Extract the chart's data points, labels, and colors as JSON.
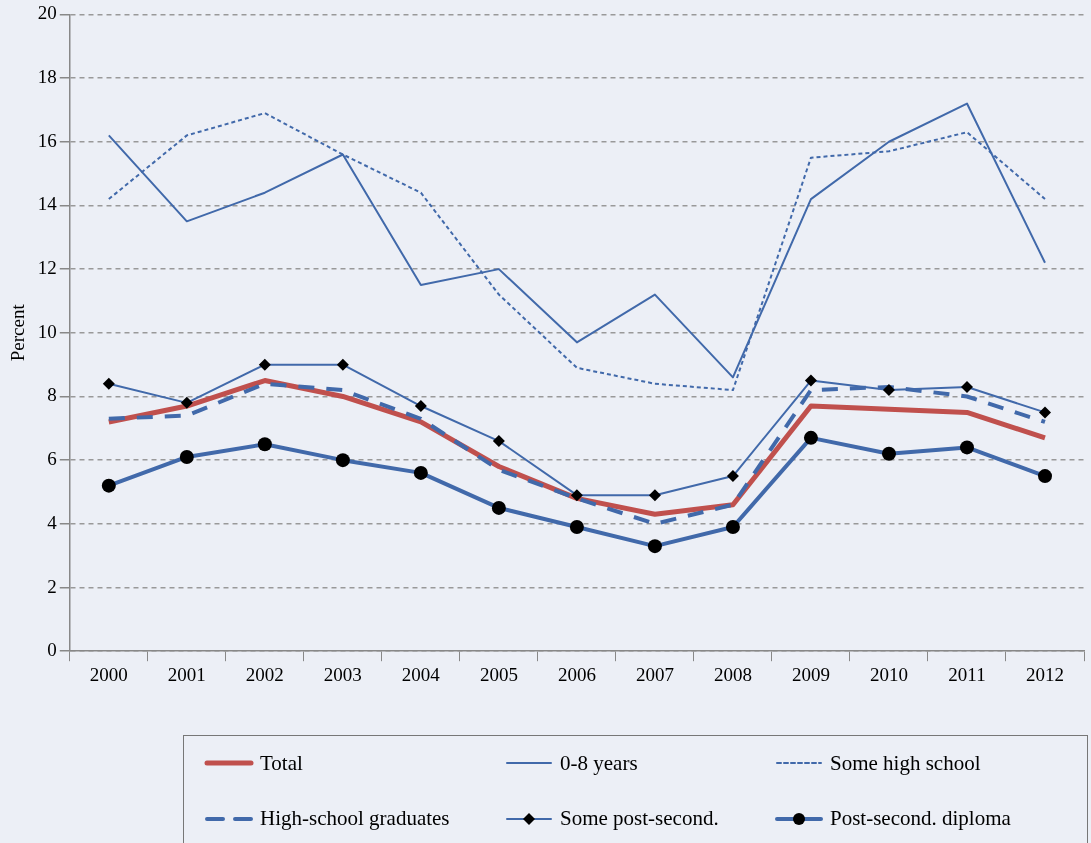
{
  "chart_data": {
    "type": "line",
    "ylabel": "Percent",
    "categories": [
      "2000",
      "2001",
      "2002",
      "2003",
      "2004",
      "2005",
      "2006",
      "2007",
      "2008",
      "2009",
      "2010",
      "2011",
      "2012"
    ],
    "ylim": [
      0,
      20
    ],
    "yticks": [
      0,
      2,
      4,
      6,
      8,
      10,
      12,
      14,
      16,
      18,
      20
    ],
    "grid": "y",
    "legend": "bottom",
    "marker": "none",
    "line_style": "solid",
    "series": [
      {
        "name": "Total",
        "color": "#c0504d",
        "values": [
          7.2,
          7.7,
          8.5,
          8.0,
          7.2,
          5.8,
          4.8,
          4.3,
          4.6,
          7.7,
          7.6,
          7.5,
          6.7
        ]
      },
      {
        "name": "0-8 years",
        "color": "#4169aa",
        "values": [
          16.2,
          13.5,
          14.4,
          15.6,
          11.5,
          12.0,
          9.7,
          11.2,
          8.6,
          14.2,
          16.0,
          17.2,
          12.2
        ]
      },
      {
        "name": "Some high school",
        "color": "#4169aa",
        "line_style": "dotted",
        "values": [
          14.2,
          16.2,
          16.9,
          15.6,
          14.4,
          11.2,
          8.9,
          8.4,
          8.2,
          15.5,
          15.7,
          16.3,
          14.2
        ]
      },
      {
        "name": "High-school graduates",
        "color": "#4169aa",
        "line_style": "dashed",
        "values": [
          7.3,
          7.4,
          8.4,
          8.2,
          7.3,
          5.7,
          4.8,
          4.0,
          4.6,
          8.2,
          8.3,
          8.0,
          7.2
        ]
      },
      {
        "name": "Some post-second.",
        "color": "#4169aa",
        "marker": "diamond",
        "values": [
          8.4,
          7.8,
          9.0,
          9.0,
          7.7,
          6.6,
          4.9,
          4.9,
          5.5,
          8.5,
          8.2,
          8.3,
          7.5
        ]
      },
      {
        "name": "Post-second. diploma",
        "color": "#4169aa",
        "marker": "circle",
        "values": [
          5.2,
          6.1,
          6.5,
          6.0,
          5.6,
          4.5,
          3.9,
          3.3,
          3.9,
          6.7,
          6.2,
          6.4,
          5.5
        ]
      }
    ]
  }
}
